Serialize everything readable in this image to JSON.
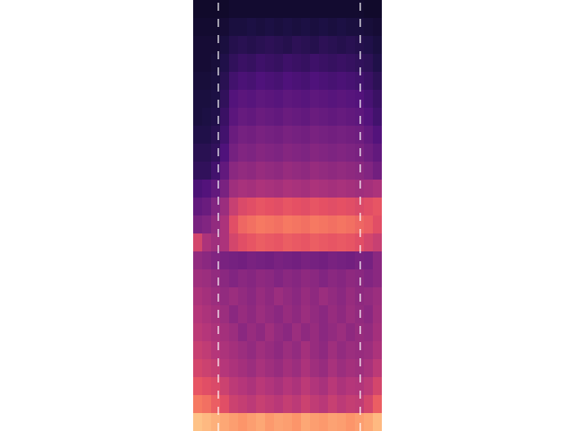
{
  "chart_data": {
    "type": "heatmap",
    "color": "magma",
    "xlim": [
      -0.5,
      20.5
    ],
    "ylim": [
      -0.5,
      23.5
    ],
    "zlim": [
      0,
      100
    ],
    "tick_labels": false,
    "grid": false,
    "vlines": [
      2.3,
      18.1
    ],
    "cells": [
      [
        88,
        86,
        84,
        82,
        80,
        78,
        80,
        82,
        79,
        81,
        80,
        78,
        82,
        80,
        79,
        81,
        80,
        78,
        80,
        82,
        86
      ],
      [
        72,
        70,
        66,
        62,
        56,
        54,
        52,
        55,
        53,
        51,
        54,
        52,
        56,
        53,
        51,
        55,
        52,
        54,
        53,
        58,
        66
      ],
      [
        64,
        62,
        60,
        56,
        52,
        50,
        48,
        51,
        49,
        47,
        50,
        48,
        52,
        49,
        47,
        51,
        48,
        50,
        49,
        52,
        58
      ],
      [
        58,
        56,
        54,
        50,
        48,
        46,
        44,
        47,
        45,
        43,
        46,
        44,
        48,
        45,
        43,
        47,
        44,
        46,
        45,
        47,
        52
      ],
      [
        55,
        53,
        50,
        48,
        46,
        44,
        42,
        45,
        43,
        41,
        44,
        42,
        46,
        43,
        41,
        45,
        42,
        44,
        43,
        44,
        48
      ],
      [
        52,
        50,
        48,
        46,
        44,
        40,
        43,
        41,
        45,
        42,
        40,
        44,
        41,
        43,
        40,
        42,
        44,
        41,
        43,
        42,
        46
      ],
      [
        50,
        48,
        46,
        44,
        40,
        43,
        41,
        44,
        42,
        40,
        43,
        41,
        44,
        42,
        40,
        43,
        41,
        44,
        42,
        40,
        45
      ],
      [
        48,
        46,
        44,
        42,
        44,
        42,
        40,
        43,
        41,
        44,
        42,
        40,
        43,
        41,
        44,
        42,
        40,
        43,
        41,
        42,
        44
      ],
      [
        45,
        44,
        42,
        40,
        38,
        40,
        39,
        41,
        40,
        38,
        40,
        39,
        41,
        40,
        38,
        40,
        39,
        41,
        40,
        38,
        40
      ],
      [
        42,
        40,
        38,
        36,
        35,
        34,
        36,
        35,
        34,
        36,
        35,
        34,
        36,
        35,
        34,
        36,
        35,
        34,
        36,
        35,
        40
      ],
      [
        58,
        48,
        45,
        48,
        58,
        62,
        64,
        66,
        65,
        64,
        66,
        65,
        64,
        66,
        65,
        64,
        65,
        64,
        62,
        58,
        55
      ],
      [
        36,
        38,
        42,
        48,
        62,
        68,
        70,
        72,
        71,
        70,
        72,
        71,
        70,
        72,
        71,
        70,
        71,
        70,
        68,
        66,
        62
      ],
      [
        30,
        32,
        38,
        44,
        55,
        60,
        62,
        64,
        63,
        62,
        64,
        63,
        62,
        64,
        63,
        62,
        63,
        62,
        60,
        62,
        64
      ],
      [
        24,
        26,
        30,
        36,
        45,
        47,
        46,
        48,
        47,
        46,
        48,
        47,
        46,
        48,
        47,
        46,
        47,
        46,
        45,
        46,
        48
      ],
      [
        18,
        18,
        22,
        30,
        40,
        42,
        41,
        43,
        42,
        41,
        43,
        42,
        41,
        43,
        42,
        41,
        42,
        41,
        40,
        38,
        34
      ],
      [
        16,
        16,
        18,
        25,
        35,
        38,
        37,
        39,
        38,
        37,
        39,
        38,
        37,
        39,
        38,
        37,
        38,
        37,
        36,
        33,
        30
      ],
      [
        14,
        14,
        16,
        22,
        32,
        35,
        34,
        36,
        35,
        34,
        36,
        35,
        34,
        36,
        35,
        34,
        35,
        34,
        33,
        30,
        26
      ],
      [
        12,
        13,
        14,
        20,
        28,
        31,
        30,
        32,
        31,
        30,
        32,
        31,
        30,
        32,
        31,
        30,
        31,
        30,
        29,
        26,
        22
      ],
      [
        12,
        12,
        13,
        18,
        26,
        28,
        27,
        29,
        28,
        27,
        29,
        28,
        27,
        29,
        28,
        27,
        28,
        27,
        26,
        23,
        20
      ],
      [
        11,
        11,
        12,
        16,
        22,
        24,
        23,
        25,
        24,
        23,
        25,
        24,
        23,
        25,
        24,
        23,
        24,
        23,
        22,
        20,
        17
      ],
      [
        10,
        10,
        11,
        14,
        18,
        20,
        19,
        21,
        20,
        19,
        21,
        20,
        19,
        21,
        20,
        19,
        20,
        19,
        18,
        17,
        14
      ],
      [
        10,
        10,
        10,
        12,
        15,
        16,
        15,
        16,
        17,
        16,
        15,
        17,
        16,
        15,
        17,
        16,
        15,
        16,
        15,
        14,
        12
      ],
      [
        9,
        9,
        9,
        10,
        12,
        12,
        13,
        12,
        13,
        12,
        13,
        12,
        13,
        12,
        13,
        12,
        13,
        12,
        12,
        11,
        10
      ],
      [
        8,
        8,
        8,
        8,
        9,
        9,
        9,
        9,
        9,
        9,
        9,
        9,
        9,
        9,
        9,
        9,
        9,
        9,
        9,
        8,
        8
      ]
    ]
  }
}
